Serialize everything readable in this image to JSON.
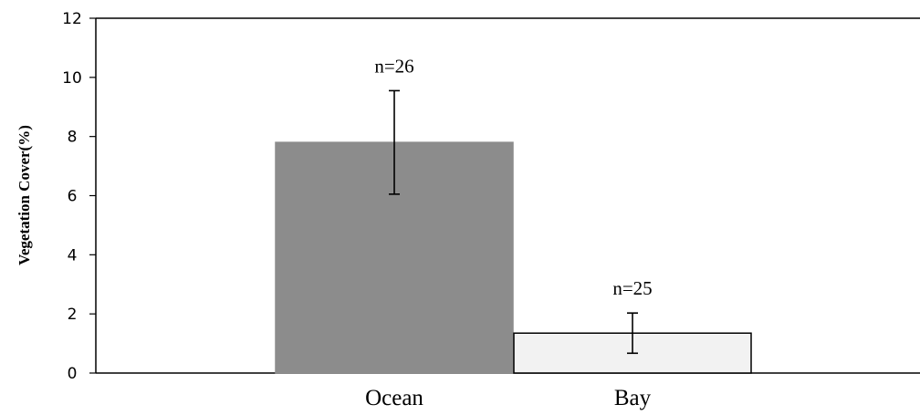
{
  "chart_data": {
    "type": "bar",
    "title": "",
    "xlabel": "",
    "ylabel": "Vegetation  Cover(%)",
    "ylim": [
      0,
      12
    ],
    "yticks": [
      0,
      2,
      4,
      6,
      8,
      10,
      12
    ],
    "categories": [
      "Ocean",
      "Bay"
    ],
    "values": [
      7.8,
      1.35
    ],
    "error": [
      1.75,
      0.68
    ],
    "annotations": [
      "n=26",
      "n=25"
    ],
    "colors": [
      "#8c8c8c",
      "#f2f2f2"
    ],
    "edge_colors": [
      "#8c8c8c",
      "#000000"
    ],
    "grid": false,
    "legend": "none"
  }
}
